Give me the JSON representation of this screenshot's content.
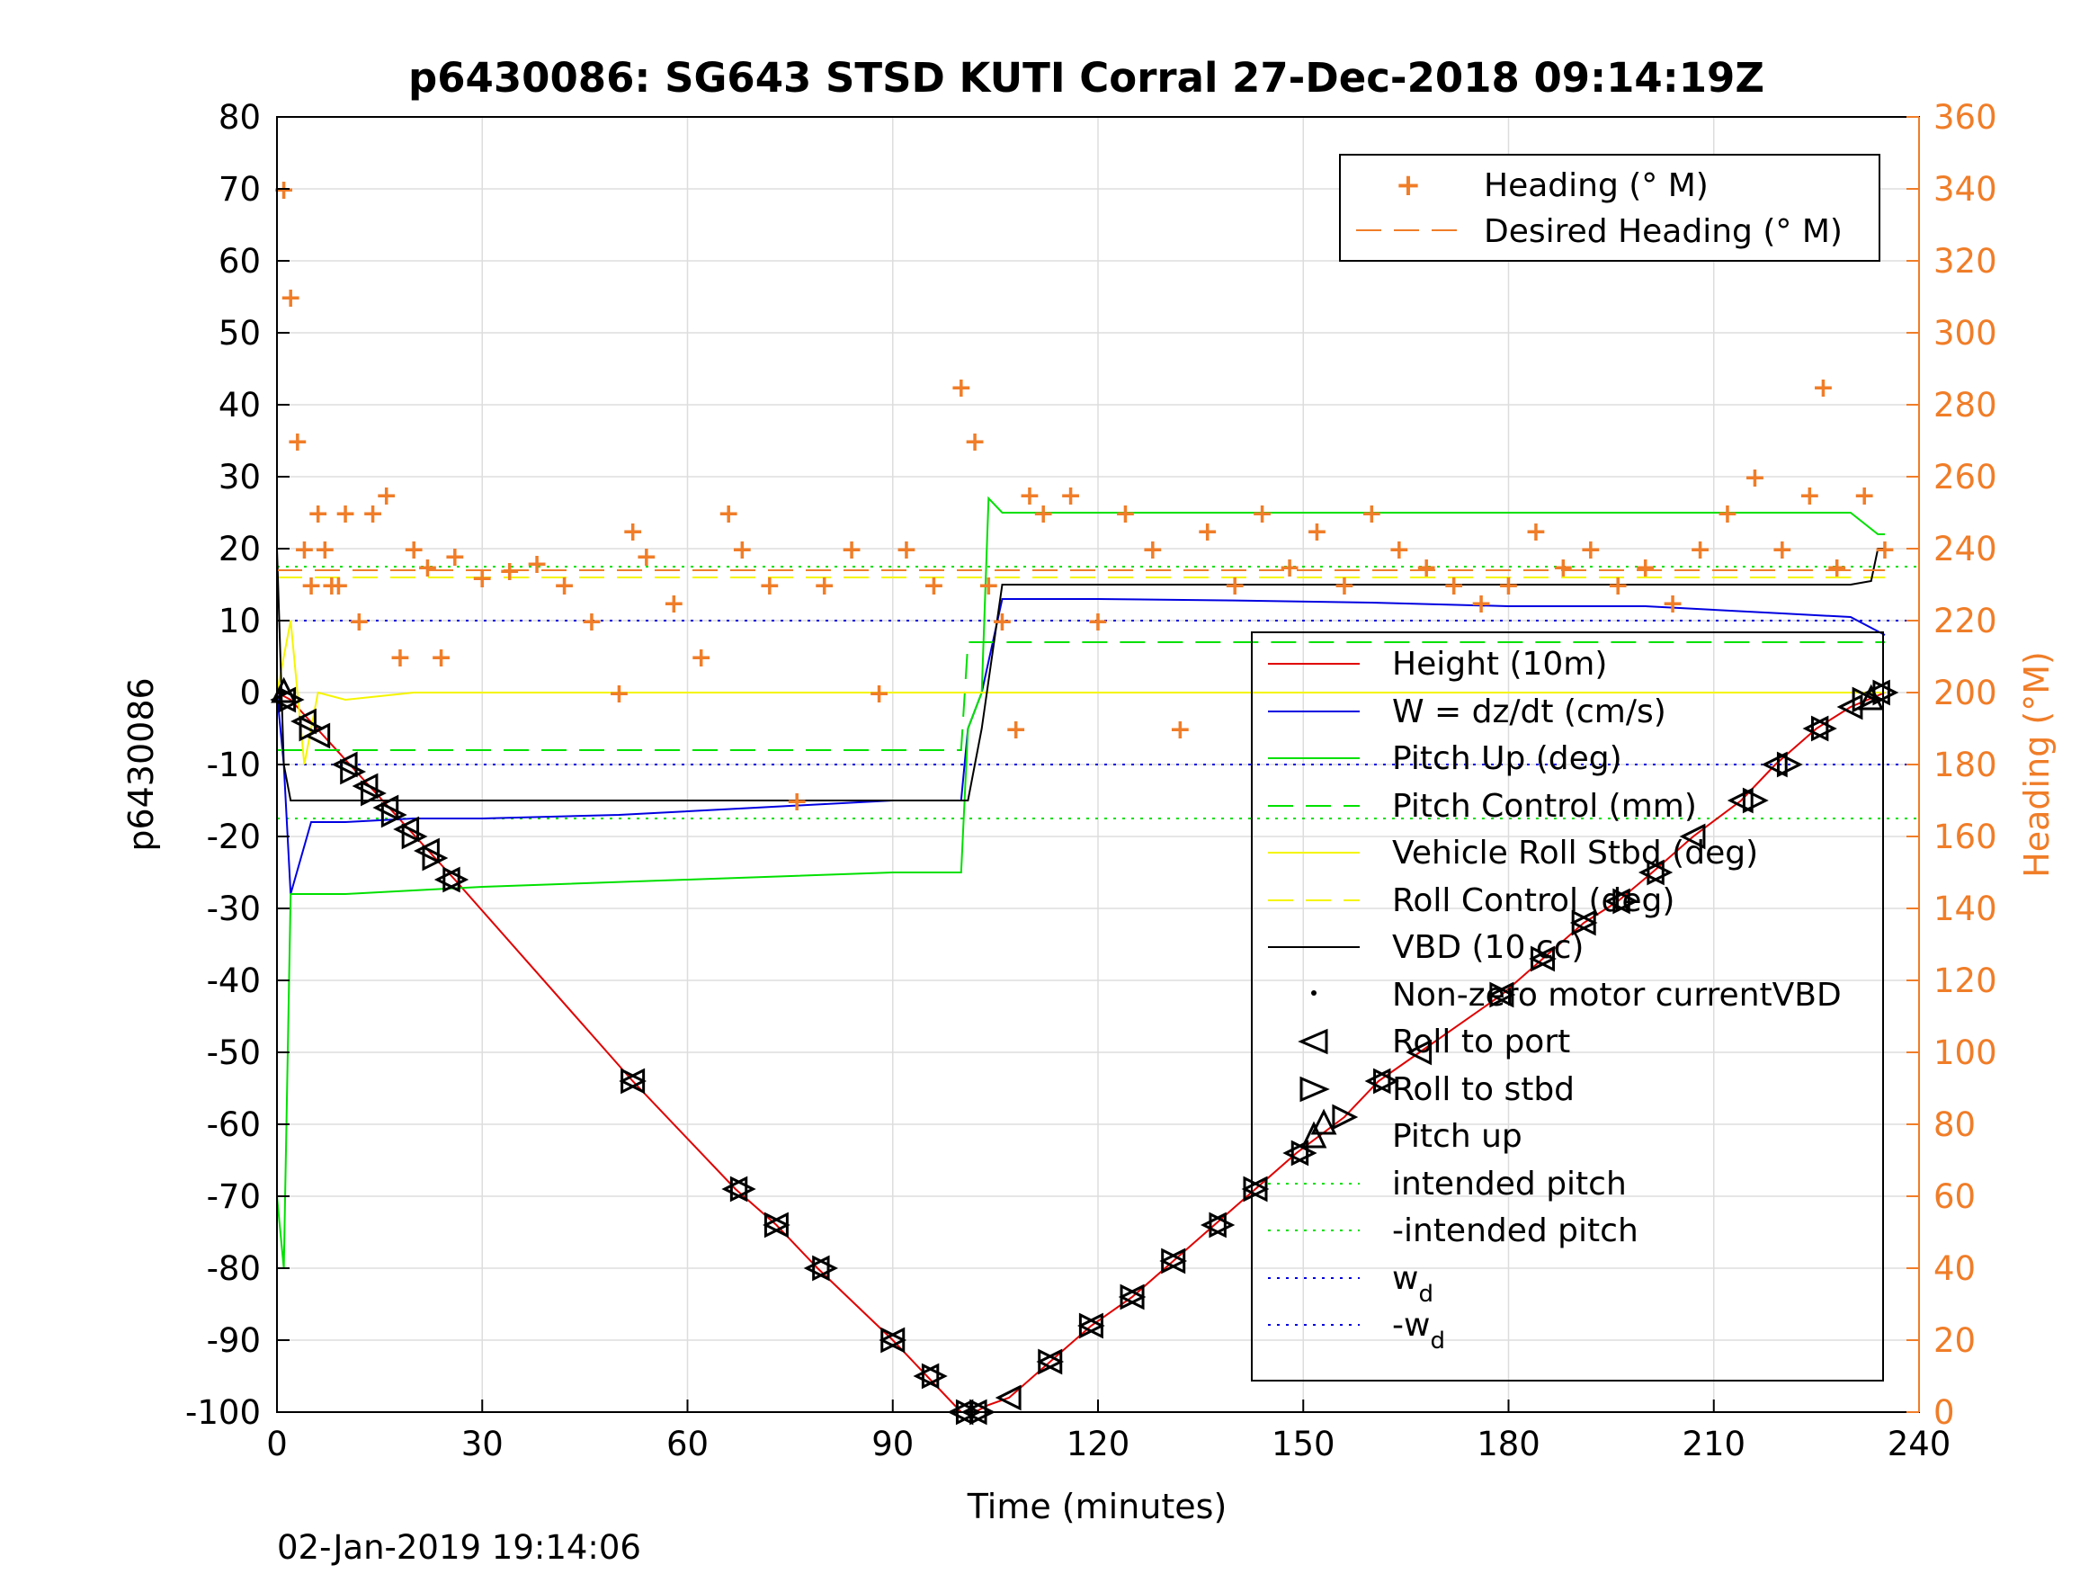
{
  "colors": {
    "heading": "#F07D28",
    "height": "#E00000",
    "w": "#0000E0",
    "pitch": "#00E000",
    "roll": "#F5F500",
    "vbd": "#000000",
    "grid": "#DDDDDD"
  },
  "chart_data": {
    "type": "line",
    "title": "p6430086: SG643 STSD KUTI Corral 27-Dec-2018 09:14:19Z",
    "xlabel": "Time (minutes)",
    "ylabel": "p6430086",
    "y2label": "Heading (°M)",
    "xlim": [
      0,
      240
    ],
    "ylim": [
      -100,
      80
    ],
    "y2lim": [
      0,
      360
    ],
    "x_ticks": [
      0,
      30,
      60,
      90,
      120,
      150,
      180,
      210,
      240
    ],
    "y_ticks": [
      80,
      70,
      60,
      50,
      40,
      30,
      20,
      10,
      0,
      -10,
      -20,
      -30,
      -40,
      -50,
      -60,
      -70,
      -80,
      -90,
      -100
    ],
    "y2_ticks": [
      360,
      340,
      320,
      300,
      280,
      260,
      240,
      220,
      200,
      180,
      160,
      140,
      120,
      100,
      80,
      60,
      40,
      20,
      0
    ],
    "grid": true,
    "legend_heading": {
      "placement": "top-right",
      "entries": [
        "Heading (° M)",
        "Desired Heading (° M)"
      ]
    },
    "legend_main": {
      "placement": "right",
      "entries": [
        "Height (10m)",
        "W = dz/dt (cm/s)",
        "Pitch Up (deg)",
        "Pitch Control (mm)",
        "Vehicle Roll Stbd (deg)",
        "Roll Control (deg)",
        "VBD (10 cc)",
        "Non-zero motor currentVBD",
        "Roll to port",
        "Roll to stbd",
        "Pitch up",
        "intended pitch",
        "-intended pitch",
        "w",
        "-w"
      ],
      "subscript": "d"
    },
    "series": [
      {
        "name": "Height (10m)",
        "x": [
          0,
          2,
          26,
          52,
          67,
          73,
          79,
          90,
          95,
          100,
          102,
          104,
          107,
          113,
          119,
          125,
          131,
          137,
          143,
          149,
          156,
          161,
          167,
          179,
          185,
          191,
          196,
          201,
          207,
          214,
          219,
          225,
          230,
          235
        ],
        "y": [
          0,
          -1,
          -26,
          -54,
          -69,
          -74,
          -80,
          -90,
          -95,
          -100,
          -100,
          -99,
          -98,
          -93,
          -88,
          -84,
          -79,
          -74,
          -69,
          -64,
          -59,
          -54,
          -50,
          -42,
          -37,
          -32,
          -29,
          -25,
          -20,
          -15,
          -10,
          -5,
          -2,
          0
        ]
      },
      {
        "name": "W = dz/dt (cm/s)",
        "x": [
          0,
          1,
          2,
          5,
          10,
          20,
          30,
          50,
          70,
          90,
          100,
          101,
          103,
          106,
          110,
          120,
          140,
          160,
          180,
          200,
          220,
          230,
          235
        ],
        "y": [
          0,
          -10,
          -28,
          -18,
          -18,
          -17.5,
          -17.5,
          -17,
          -16,
          -15,
          -15,
          -5,
          0,
          13,
          13,
          13,
          12.8,
          12.5,
          12,
          12,
          11,
          10.5,
          8
        ]
      },
      {
        "name": "Pitch Up (deg)",
        "x": [
          0,
          1,
          2,
          5,
          10,
          30,
          60,
          90,
          100,
          101,
          103,
          104,
          106,
          120,
          150,
          180,
          210,
          230,
          234,
          235
        ],
        "y": [
          -70,
          -80,
          -28,
          -28,
          -28,
          -27,
          -26,
          -25,
          -25,
          -5,
          0,
          27,
          25,
          25,
          25,
          25,
          25,
          25,
          22,
          22
        ]
      },
      {
        "name": "Pitch Control (mm)",
        "x": [
          0,
          100,
          101,
          110,
          150,
          200,
          235
        ],
        "y": [
          -8,
          -8,
          7,
          7,
          7,
          7,
          7
        ]
      },
      {
        "name": "Vehicle Roll Stbd (deg)",
        "x": [
          0,
          2,
          4,
          6,
          10,
          20,
          30,
          50,
          60,
          80,
          100,
          110,
          130,
          150,
          170,
          200,
          220,
          235
        ],
        "y": [
          0,
          10,
          -10,
          0,
          -1,
          0,
          0,
          0,
          0,
          0,
          0,
          0,
          0,
          0,
          0,
          0,
          0,
          0
        ]
      },
      {
        "name": "Roll Control (deg)",
        "x": [
          0,
          235
        ],
        "y": [
          16,
          16
        ]
      },
      {
        "name": "VBD (10 cc)",
        "x": [
          0,
          1,
          2,
          100,
          101,
          103,
          106,
          230,
          233,
          234,
          235
        ],
        "y": [
          20,
          -10,
          -15,
          -15,
          -15,
          -5,
          15,
          15,
          15.5,
          20,
          20
        ]
      },
      {
        "name": "Heading (° M)",
        "axis": "right",
        "x": [
          1,
          2,
          3,
          4,
          5,
          6,
          7,
          8,
          9,
          10,
          12,
          14,
          16,
          18,
          20,
          22,
          24,
          26,
          30,
          34,
          38,
          42,
          46,
          50,
          52,
          54,
          58,
          62,
          66,
          68,
          72,
          76,
          80,
          84,
          88,
          92,
          96,
          100,
          102,
          104,
          106,
          108,
          110,
          112,
          116,
          120,
          124,
          128,
          132,
          136,
          140,
          144,
          148,
          152,
          156,
          160,
          164,
          168,
          172,
          176,
          180,
          184,
          188,
          192,
          196,
          200,
          204,
          208,
          212,
          216,
          220,
          224,
          226,
          228,
          232,
          235
        ],
        "y": [
          340,
          310,
          270,
          240,
          230,
          250,
          240,
          230,
          230,
          250,
          220,
          250,
          255,
          210,
          240,
          235,
          210,
          238,
          232,
          234,
          236,
          230,
          220,
          200,
          245,
          238,
          225,
          210,
          250,
          240,
          230,
          170,
          230,
          240,
          200,
          240,
          230,
          285,
          270,
          230,
          220,
          190,
          255,
          250,
          255,
          220,
          250,
          240,
          190,
          245,
          230,
          250,
          235,
          245,
          230,
          250,
          240,
          235,
          230,
          225,
          230,
          245,
          235,
          240,
          230,
          235,
          225,
          240,
          250,
          260,
          240,
          255,
          285,
          235,
          255,
          240
        ]
      },
      {
        "name": "Desired Heading (° M)",
        "axis": "right",
        "x": [
          0,
          235
        ],
        "y": [
          234,
          234
        ]
      }
    ],
    "roll_port_markers": {
      "x": [
        1,
        4,
        6,
        10,
        13,
        16,
        19,
        22,
        25,
        52,
        67,
        73,
        79,
        90,
        95,
        100,
        102,
        107,
        113,
        119,
        125,
        131,
        137,
        143,
        149,
        161,
        167,
        179,
        185,
        191,
        196,
        201,
        207,
        214,
        219,
        225,
        230,
        234
      ],
      "y": [
        -1,
        -4,
        -6,
        -10,
        -13,
        -16,
        -19,
        -22,
        -26,
        -54,
        -69,
        -74,
        -80,
        -90,
        -95,
        -100,
        -100,
        -98,
        -93,
        -88,
        -84,
        -79,
        -74,
        -69,
        -64,
        -54,
        -50,
        -42,
        -37,
        -32,
        -29,
        -25,
        -20,
        -15,
        -10,
        -5,
        -2,
        0
      ]
    },
    "roll_stbd_markers": {
      "x": [
        2,
        5,
        11,
        14,
        17,
        20,
        23,
        26,
        52,
        68,
        73,
        80,
        90,
        96,
        101,
        103,
        113,
        119,
        125,
        131,
        138,
        143,
        150,
        156,
        162,
        179,
        185,
        191,
        197,
        202,
        216,
        221,
        226,
        232,
        235
      ],
      "y": [
        -1,
        -5,
        -11,
        -14,
        -17,
        -20,
        -23,
        -26,
        -54,
        -69,
        -74,
        -80,
        -90,
        -95,
        -100,
        -100,
        -93,
        -88,
        -84,
        -79,
        -74,
        -69,
        -64,
        -59,
        -54,
        -42,
        -37,
        -32,
        -29,
        -25,
        -15,
        -10,
        -5,
        -1,
        0
      ]
    },
    "pitch_up_markers": {
      "x": [
        1,
        153,
        233
      ],
      "y": [
        0,
        -60,
        -1
      ]
    },
    "intended_pitch": 17.5,
    "w_d": 10
  },
  "footer": {
    "timestamp": "02-Jan-2019 19:14:06"
  }
}
